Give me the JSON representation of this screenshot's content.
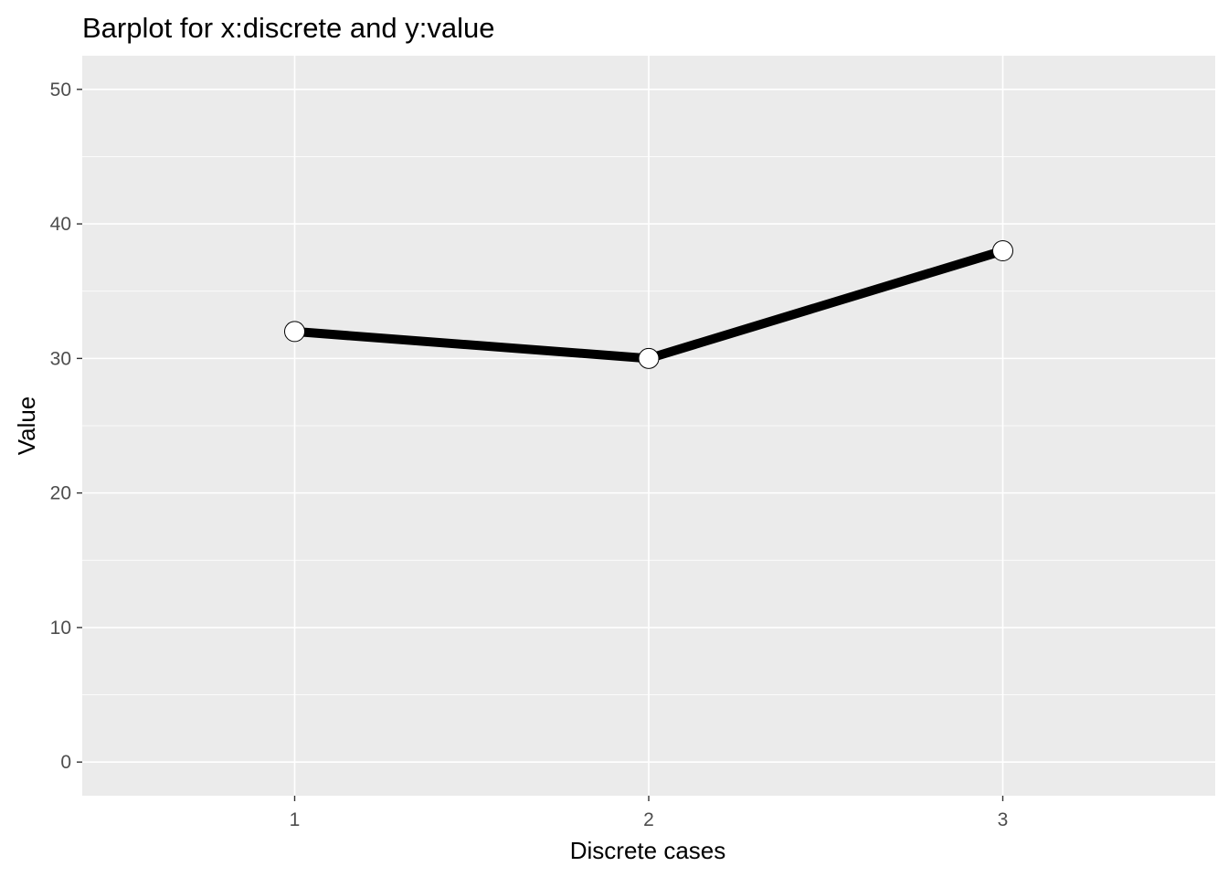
{
  "chart_data": {
    "type": "line",
    "title": "Barplot for x:discrete and y:value",
    "xlabel": "Discrete cases",
    "ylabel": "Value",
    "categories": [
      "1",
      "2",
      "3"
    ],
    "values": [
      32,
      30,
      38
    ],
    "ylim": [
      -2.5,
      52.5
    ],
    "yticks": [
      0,
      10,
      20,
      30,
      40,
      50
    ],
    "y_minor_ticks": [
      5,
      15,
      25,
      35,
      45
    ],
    "grid": true,
    "colors": {
      "panel_background": "#EBEBEB",
      "grid": "#FFFFFF",
      "line": "#000000",
      "point_fill": "#FFFFFF",
      "point_stroke": "#000000",
      "tick_text": "#4D4D4D",
      "tick_mark": "#333333"
    }
  }
}
